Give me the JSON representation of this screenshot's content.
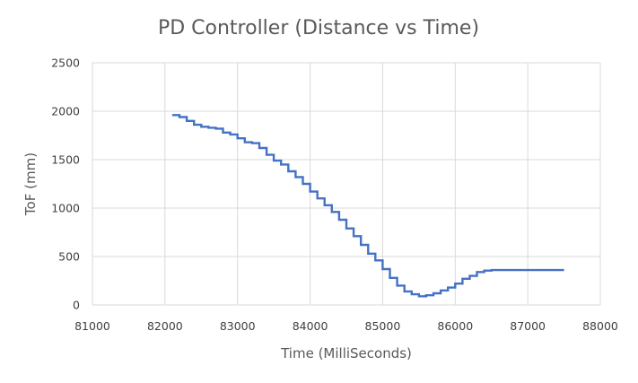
{
  "chart_data": {
    "type": "line",
    "title": "PD Controller (Distance vs Time)",
    "xlabel": "Time (MilliSeconds)",
    "ylabel": "ToF (mm)",
    "xlim": [
      81000,
      88000
    ],
    "ylim": [
      0,
      2500
    ],
    "x_ticks": [
      81000,
      82000,
      83000,
      84000,
      85000,
      86000,
      87000,
      88000
    ],
    "y_ticks": [
      0,
      500,
      1000,
      1500,
      2000,
      2500
    ],
    "x_tick_labels": [
      "81000",
      "82000",
      "83000",
      "84000",
      "85000",
      "86000",
      "87000",
      "88000"
    ],
    "y_tick_labels": [
      "0",
      "500",
      "1000",
      "1500",
      "2000",
      "2500"
    ],
    "grid": true,
    "legend": "none",
    "colors": {
      "line": "#4472c4",
      "grid": "#d9d9d9",
      "text": "#595959"
    },
    "series": [
      {
        "x": [
          82100,
          82200,
          82300,
          82400,
          82500,
          82600,
          82700,
          82800,
          82900,
          83000,
          83100,
          83200,
          83300,
          83400,
          83500,
          83600,
          83700,
          83800,
          83900,
          84000,
          84100,
          84200,
          84300,
          84400,
          84500,
          84600,
          84700,
          84800,
          84900,
          85000,
          85100,
          85200,
          85300,
          85400,
          85500,
          85600,
          85700,
          85800,
          85900,
          86000,
          86100,
          86200,
          86300,
          86400,
          86500,
          86600,
          86700,
          86800,
          86900,
          87000,
          87100,
          87200,
          87300,
          87400,
          87500
        ],
        "y": [
          1960,
          1940,
          1900,
          1860,
          1840,
          1830,
          1820,
          1780,
          1760,
          1720,
          1680,
          1670,
          1620,
          1550,
          1490,
          1450,
          1380,
          1320,
          1250,
          1170,
          1100,
          1030,
          960,
          880,
          790,
          710,
          620,
          530,
          460,
          370,
          280,
          200,
          140,
          110,
          90,
          100,
          120,
          150,
          180,
          220,
          270,
          300,
          340,
          355,
          360,
          360,
          360,
          360,
          360,
          360,
          360,
          360,
          360,
          360,
          360
        ]
      }
    ]
  }
}
